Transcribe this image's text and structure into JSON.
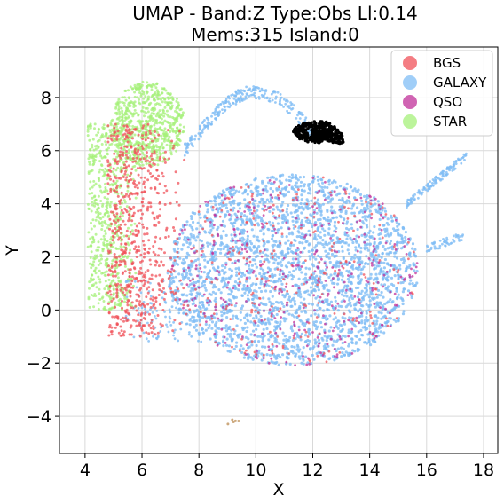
{
  "chart_data": {
    "type": "scatter",
    "title": "UMAP  -  Band:Z Type:Obs Ll:0.14",
    "subtitle": "Mems:315 Island:0",
    "xlabel": "X",
    "ylabel": "Y",
    "xlim": [
      3.1,
      18.5
    ],
    "ylim": [
      -5.4,
      9.9
    ],
    "xticks": [
      4,
      6,
      8,
      10,
      12,
      14,
      16,
      18
    ],
    "yticks": [
      -4,
      -2,
      0,
      2,
      4,
      6,
      8
    ],
    "xtick_labels": [
      "4",
      "6",
      "8",
      "10",
      "12",
      "14",
      "16",
      "18"
    ],
    "ytick_labels": [
      "−4",
      "−2",
      "0",
      "2",
      "4",
      "6",
      "8"
    ],
    "grid": true,
    "legend_position": "top-right",
    "series": [
      {
        "name": "BGS",
        "color": "#f0525a"
      },
      {
        "name": "GALAXY",
        "color": "#80bdf5"
      },
      {
        "name": "QSO",
        "color": "#c0309a"
      },
      {
        "name": "STAR",
        "color": "#a6f07a"
      }
    ],
    "regions": {
      "galaxy_main": {
        "cx": 11.3,
        "cy": 1.5,
        "rx": 4.4,
        "ry": 3.6
      },
      "star_blob": {
        "cx": 6.2,
        "cy": 7.0,
        "rx": 1.3,
        "ry": 1.6
      },
      "star_left": {
        "x": [
          4.0,
          5.8
        ],
        "y": [
          0.0,
          7.0
        ]
      },
      "bgs_edge": {
        "x": [
          4.8,
          7.5
        ],
        "y": [
          -1.0,
          7.0
        ]
      },
      "arc_top": {
        "x": [
          7.5,
          12.0
        ],
        "y": [
          6.0,
          8.3
        ]
      },
      "tail_right": {
        "x": [
          15.3,
          17.4
        ],
        "y": [
          4.0,
          5.8
        ]
      },
      "tail_right_low": {
        "x": [
          16.0,
          17.3
        ],
        "y": [
          2.3,
          2.8
        ]
      },
      "island_member": {
        "cx": 12.2,
        "cy": 6.7,
        "rx": 0.9,
        "ry": 0.4,
        "count": 315
      },
      "outlier": {
        "x": [
          8.9,
          9.4
        ],
        "y": [
          -4.4,
          -4.0
        ]
      }
    }
  }
}
